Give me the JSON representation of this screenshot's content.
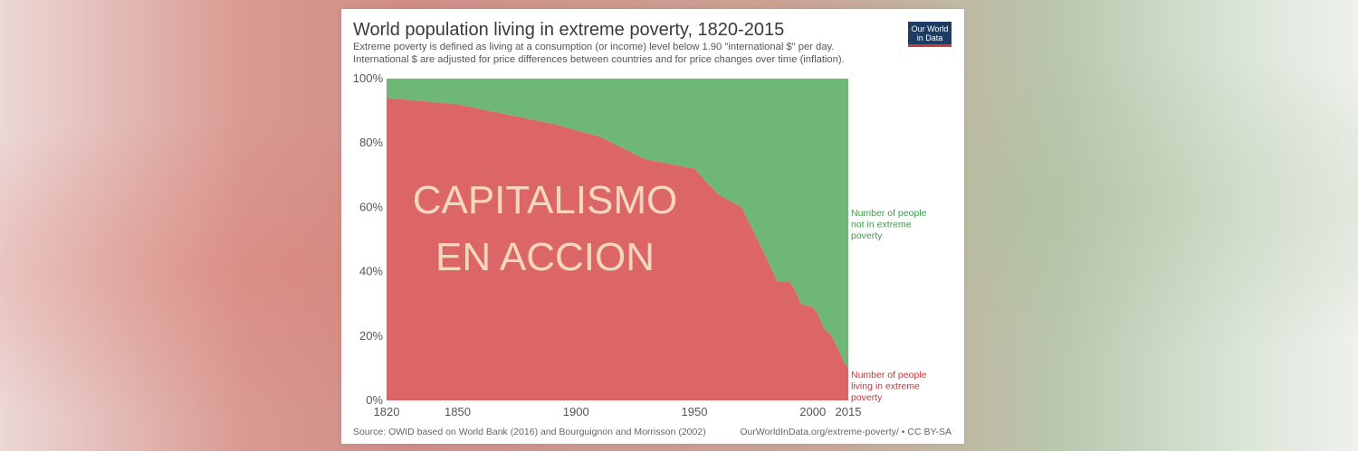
{
  "chart_data": {
    "type": "area",
    "title": "World population living in extreme poverty, 1820-2015",
    "subtitle_lines": [
      "Extreme poverty is defined as living at a consumption (or income) level below 1.90 \"international $\" per day.",
      "International $ are adjusted for price differences between countries and for price changes over time (inflation)."
    ],
    "x": [
      1820,
      1850,
      1870,
      1890,
      1910,
      1929,
      1950,
      1960,
      1970,
      1980,
      1985,
      1990,
      1992,
      1995,
      2000,
      2002,
      2005,
      2008,
      2010,
      2012,
      2013,
      2015
    ],
    "series": [
      {
        "name": "Number of people living in extreme poverty",
        "color": "#dc6665",
        "values": [
          94,
          92,
          89,
          86,
          82,
          75,
          72,
          64,
          60,
          45,
          37,
          37,
          35,
          30,
          29,
          27,
          22,
          20,
          17,
          14,
          12,
          10
        ]
      },
      {
        "name": "Number of people not in extreme poverty",
        "color": "#6fb776",
        "values": [
          6,
          8,
          11,
          14,
          18,
          25,
          28,
          36,
          40,
          55,
          63,
          63,
          65,
          70,
          71,
          73,
          78,
          80,
          83,
          86,
          88,
          90
        ]
      }
    ],
    "legend_labels": [
      [
        "Number of people",
        "not in extreme",
        "poverty"
      ],
      [
        "Number of people",
        "living in extreme",
        "poverty"
      ]
    ],
    "x_ticks": [
      "1820",
      "1850",
      "1900",
      "1950",
      "2000",
      "2015"
    ],
    "y_ticks": [
      "0%",
      "20%",
      "40%",
      "60%",
      "80%",
      "100%"
    ],
    "xlim": [
      1820,
      2015
    ],
    "ylim": [
      0,
      100
    ],
    "stacked": true,
    "annotation": [
      "CAPITALISMO",
      "EN ACCION"
    ],
    "annotation_color": "#f4d7bf",
    "source": "Source: OWID based on World Bank (2016) and Bourguignon and Morrisson (2002)",
    "credit": "OurWorldInData.org/extreme-poverty/ • CC BY-SA"
  },
  "logo": {
    "line1": "Our World",
    "line2": "in Data"
  },
  "colors": {
    "text_axis": "#555555"
  }
}
